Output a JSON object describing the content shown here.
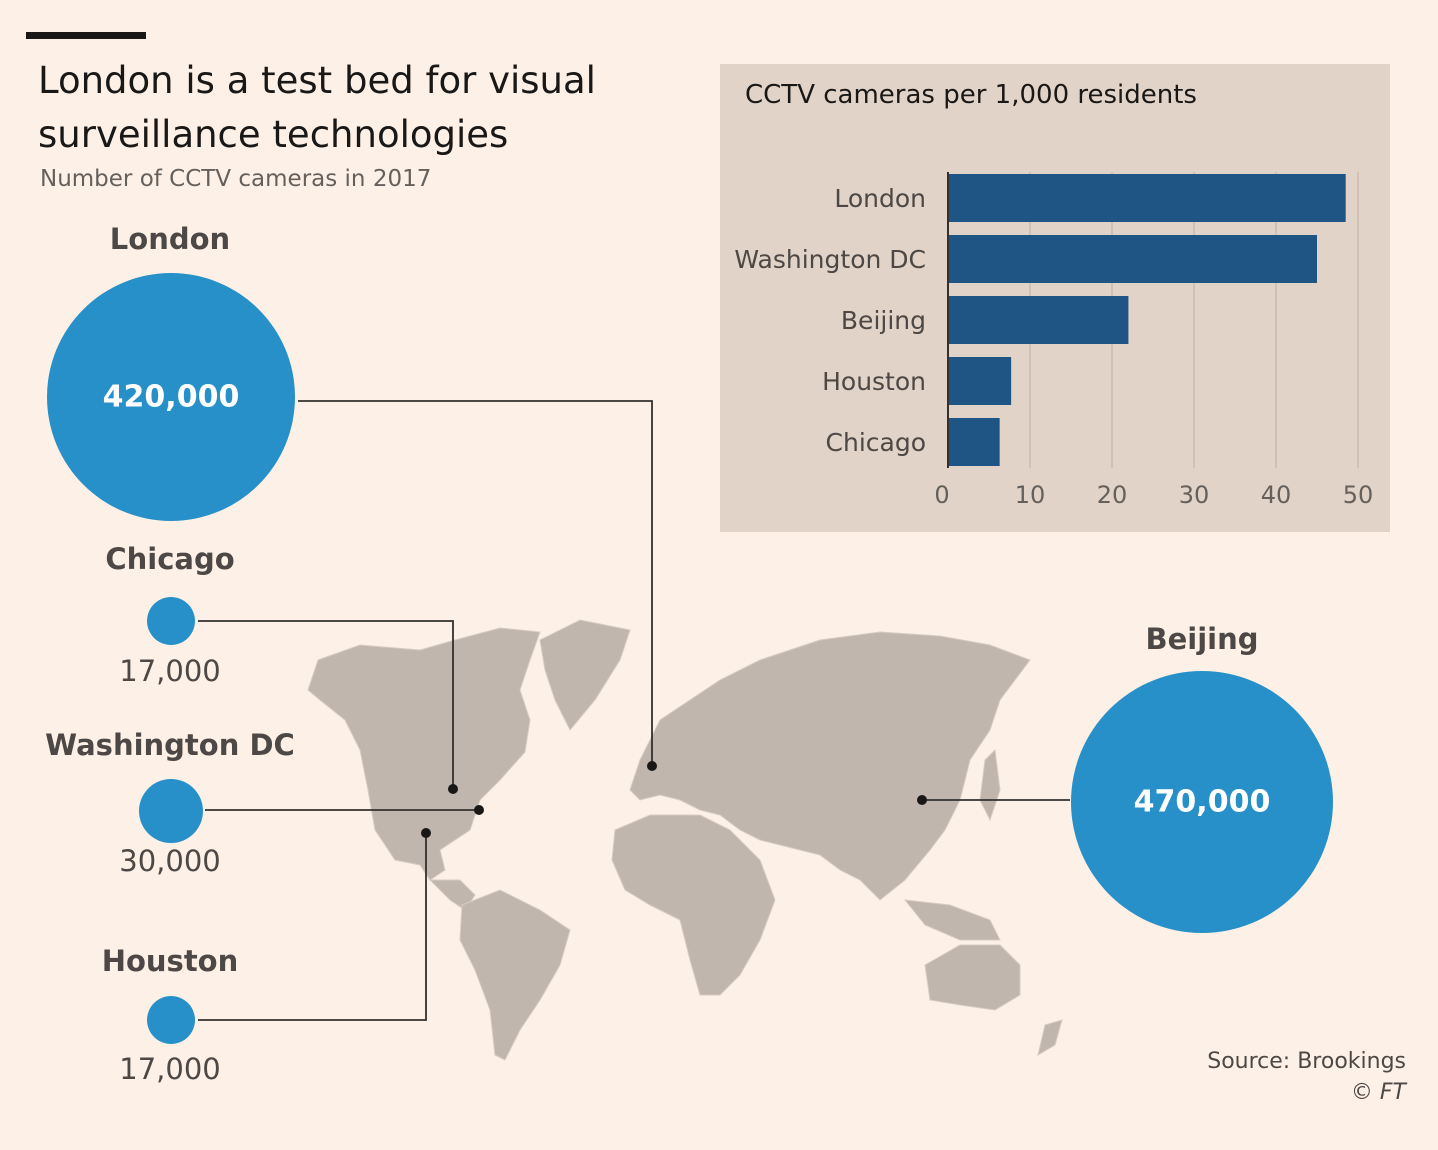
{
  "title": "London is a test bed for visual surveillance technologies",
  "subtitle": "Number of CCTV cameras in 2017",
  "source": "Source: Brookings",
  "credit": "© FT",
  "colors": {
    "background": "#fdf1e7",
    "bubble": "#2890c8",
    "bar": "#1f5585",
    "panel": "#e1d3c7",
    "land": "#c1b6ad"
  },
  "chart_data": [
    {
      "type": "bubble",
      "title": "Number of CCTV cameras in 2017",
      "points": [
        {
          "label": "London",
          "value_label": "420,000",
          "value": 420000
        },
        {
          "label": "Chicago",
          "value_label": "17,000",
          "value": 17000
        },
        {
          "label": "Washington DC",
          "value_label": "30,000",
          "value": 30000
        },
        {
          "label": "Houston",
          "value_label": "17,000",
          "value": 17000
        },
        {
          "label": "Beijing",
          "value_label": "470,000",
          "value": 470000
        }
      ]
    },
    {
      "type": "bar",
      "orientation": "horizontal",
      "title": "CCTV cameras per 1,000 residents",
      "categories": [
        "London",
        "Washington DC",
        "Beijing",
        "Houston",
        "Chicago"
      ],
      "values": [
        48.5,
        45,
        22,
        7.7,
        6.3
      ],
      "xlim": [
        0,
        50
      ],
      "xticks": [
        0,
        10,
        20,
        30,
        40,
        50
      ],
      "grid": true
    }
  ]
}
